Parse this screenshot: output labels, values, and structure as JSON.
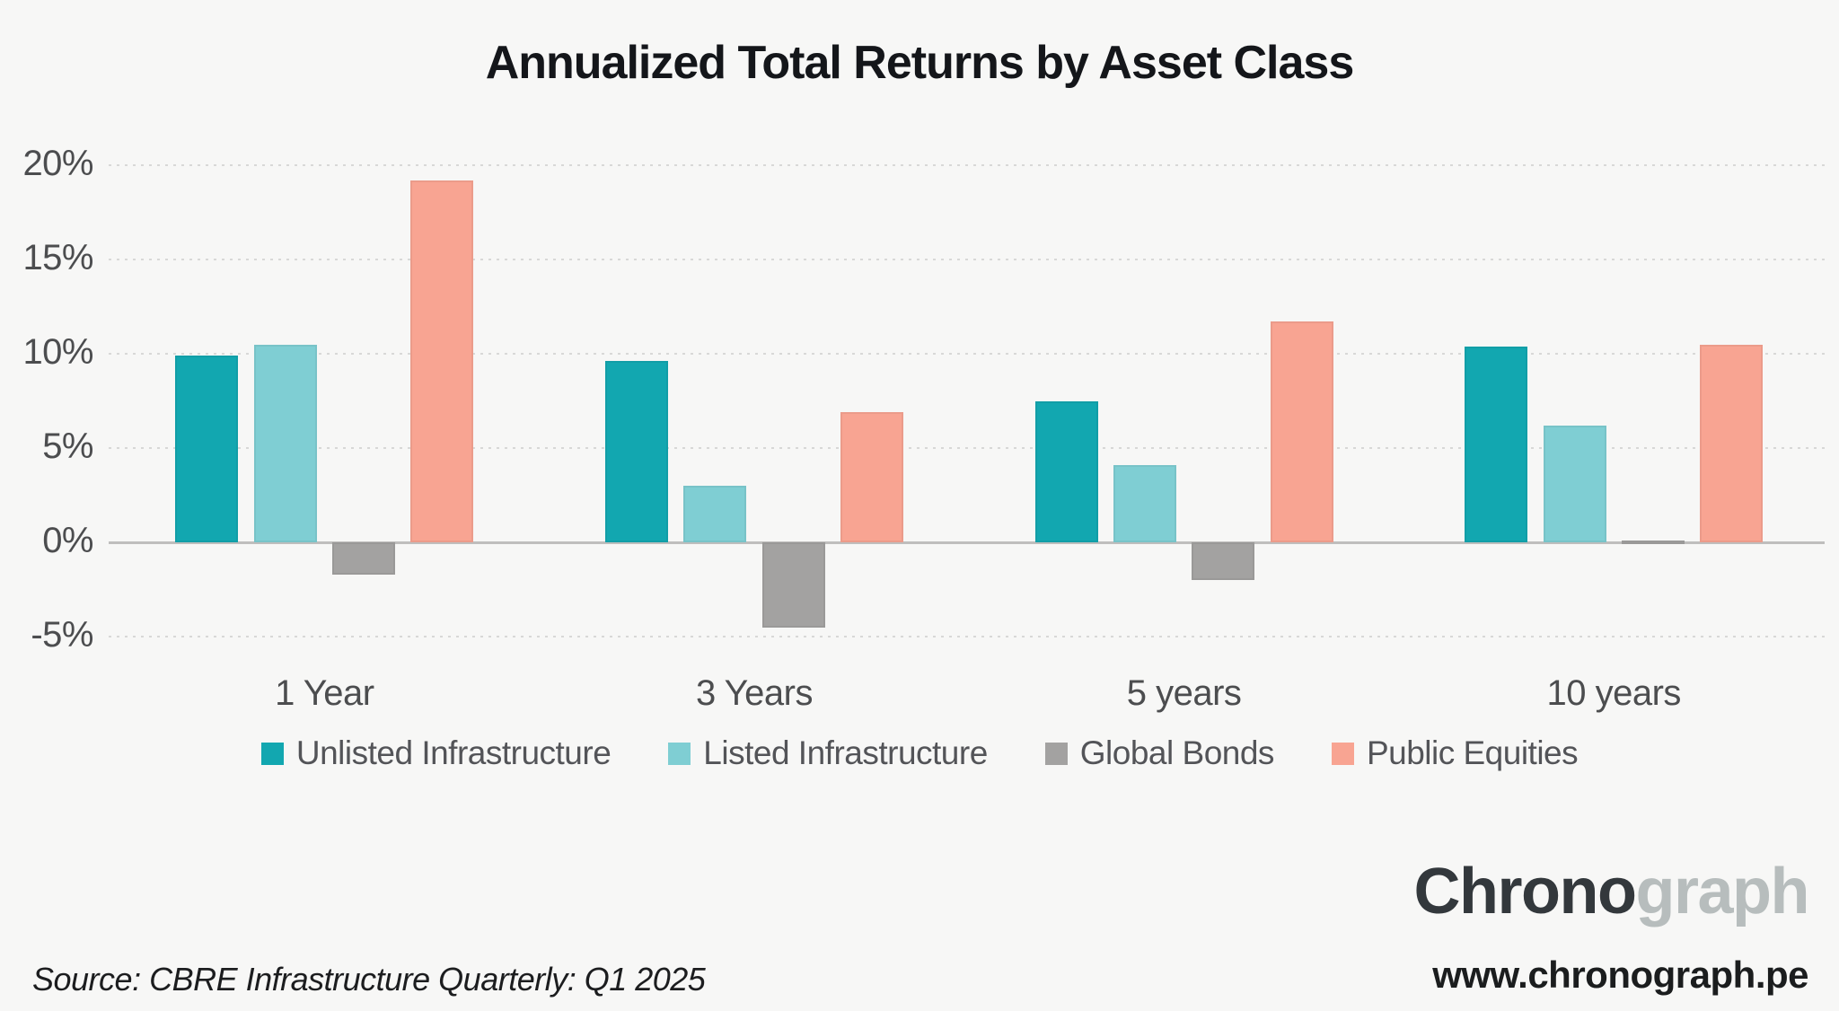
{
  "title": "Annualized Total Returns by Asset Class",
  "chart_data": {
    "type": "bar",
    "title": "Annualized Total Returns by Asset Class",
    "categories": [
      "1 Year",
      "3 Years",
      "5 years",
      "10 years"
    ],
    "series": [
      {
        "name": "Unlisted Infrastructure",
        "color": "#12a7b0",
        "values": [
          9.9,
          9.6,
          7.5,
          10.4
        ]
      },
      {
        "name": "Listed Infrastructure",
        "color": "#7fced3",
        "values": [
          10.5,
          3.0,
          4.1,
          6.2
        ]
      },
      {
        "name": "Global Bonds",
        "color": "#a3a2a1",
        "values": [
          -1.7,
          -4.5,
          -2.0,
          0.1
        ]
      },
      {
        "name": "Public Equities",
        "color": "#f8a492",
        "values": [
          19.2,
          6.9,
          11.7,
          10.5
        ]
      }
    ],
    "yticks": [
      {
        "label": "20%",
        "value": 20
      },
      {
        "label": "15%",
        "value": 15
      },
      {
        "label": "10%",
        "value": 10
      },
      {
        "label": "5%",
        "value": 5
      },
      {
        "label": "0%",
        "value": 0
      },
      {
        "label": "-5%",
        "value": -5
      }
    ],
    "ylim": [
      -6.5,
      22.5
    ],
    "xlabel": "",
    "ylabel": "",
    "grid": "horizontal-dotted",
    "legend_position": "bottom",
    "background_color": "#f7f7f6",
    "grid_color": "#d8d8d7",
    "zero_line_color": "#bfbebd",
    "axis_text_color": "#4c4d4f"
  },
  "footer": {
    "source": "Source: CBRE Infrastructure Quarterly: Q1 2025",
    "brand_part1": "Chrono",
    "brand_part2": "graph",
    "brand_color_dark": "#33383c",
    "brand_color_light": "#b7bdbd",
    "website": "www.chronograph.pe"
  }
}
